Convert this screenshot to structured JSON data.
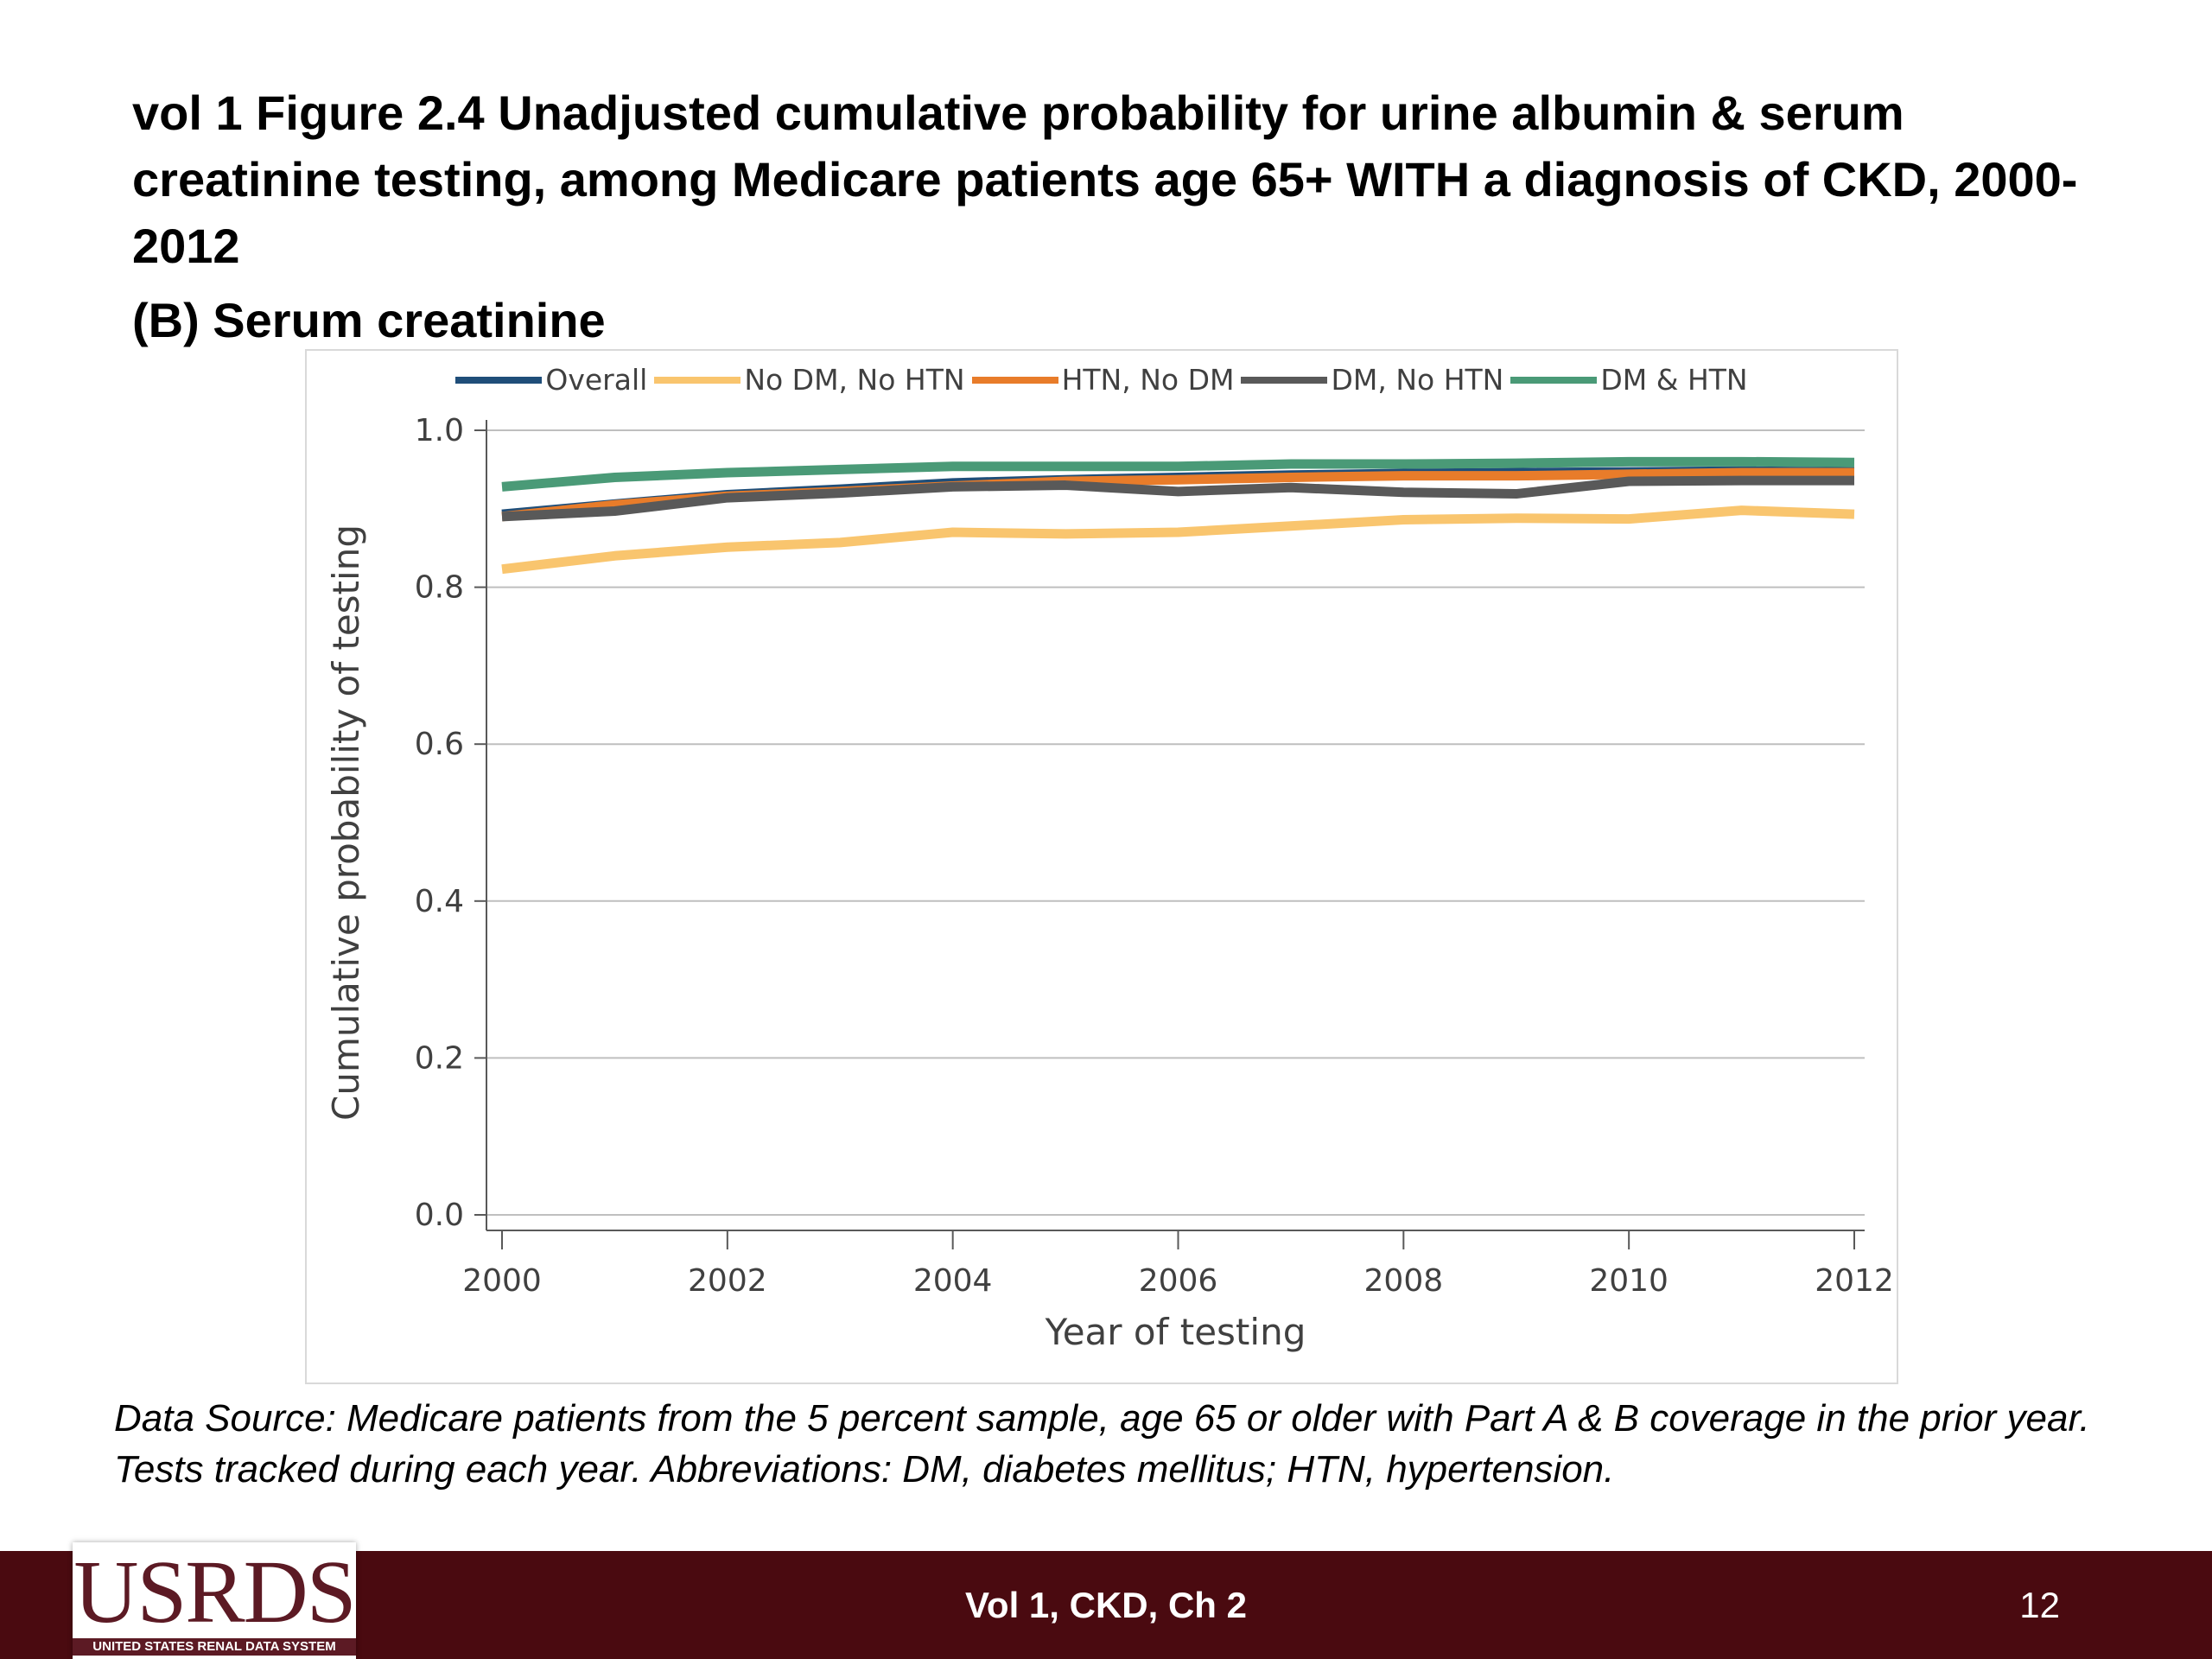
{
  "slide": {
    "title": "vol 1 Figure 2.4 Unadjusted cumulative probability for urine albumin & serum creatinine testing, among Medicare patients age 65+ WITH a diagnosis of CKD, 2000-2012",
    "subtitle": "(B) Serum creatinine",
    "source_note": "Data Source: Medicare patients from the 5 percent sample, age 65 or older with Part A & B coverage in the prior year. Tests tracked during each year. Abbreviations: DM, diabetes mellitus; HTN, hypertension.",
    "footer_text": "Vol 1, CKD, Ch 2",
    "page_number": "12",
    "logo_text": "USRDS",
    "logo_subtext": "UNITED STATES RENAL DATA SYSTEM"
  },
  "chart_data": {
    "type": "line",
    "title": "",
    "xlabel": "Year of testing",
    "ylabel": "Cumulative probability of testing",
    "x": [
      2000,
      2001,
      2002,
      2003,
      2004,
      2005,
      2006,
      2007,
      2008,
      2009,
      2010,
      2011,
      2012
    ],
    "xticks": [
      "2000",
      "2002",
      "2004",
      "2006",
      "2008",
      "2010",
      "2012"
    ],
    "xtick_values": [
      2000,
      2002,
      2004,
      2006,
      2008,
      2010,
      2012
    ],
    "yticks": [
      "0.0",
      "0.2",
      "0.4",
      "0.6",
      "0.8",
      "1.0"
    ],
    "ytick_values": [
      0.0,
      0.2,
      0.4,
      0.6,
      0.8,
      1.0
    ],
    "xlim": [
      2000,
      2012
    ],
    "ylim": [
      0,
      1.0
    ],
    "grid": "horizontal",
    "legend_position": "top",
    "series": [
      {
        "name": "Overall",
        "color": "#1f4e79",
        "values": [
          0.893,
          0.906,
          0.918,
          0.925,
          0.933,
          0.937,
          0.94,
          0.943,
          0.945,
          0.946,
          0.947,
          0.948,
          0.947
        ]
      },
      {
        "name": "No DM, No HTN",
        "color": "#f9c56e",
        "values": [
          0.823,
          0.84,
          0.851,
          0.857,
          0.87,
          0.868,
          0.87,
          0.878,
          0.886,
          0.888,
          0.887,
          0.898,
          0.893
        ]
      },
      {
        "name": "HTN, No DM",
        "color": "#e87c2a",
        "values": [
          0.89,
          0.905,
          0.916,
          0.922,
          0.929,
          0.935,
          0.937,
          0.94,
          0.942,
          0.942,
          0.944,
          0.946,
          0.946
        ]
      },
      {
        "name": "DM, No HTN",
        "color": "#595959",
        "values": [
          0.89,
          0.897,
          0.914,
          0.92,
          0.928,
          0.93,
          0.922,
          0.927,
          0.921,
          0.919,
          0.935,
          0.936,
          0.936
        ]
      },
      {
        "name": "DM & HTN",
        "color": "#4a9a77",
        "values": [
          0.928,
          0.94,
          0.946,
          0.95,
          0.954,
          0.954,
          0.954,
          0.957,
          0.957,
          0.958,
          0.96,
          0.96,
          0.959
        ]
      }
    ]
  }
}
